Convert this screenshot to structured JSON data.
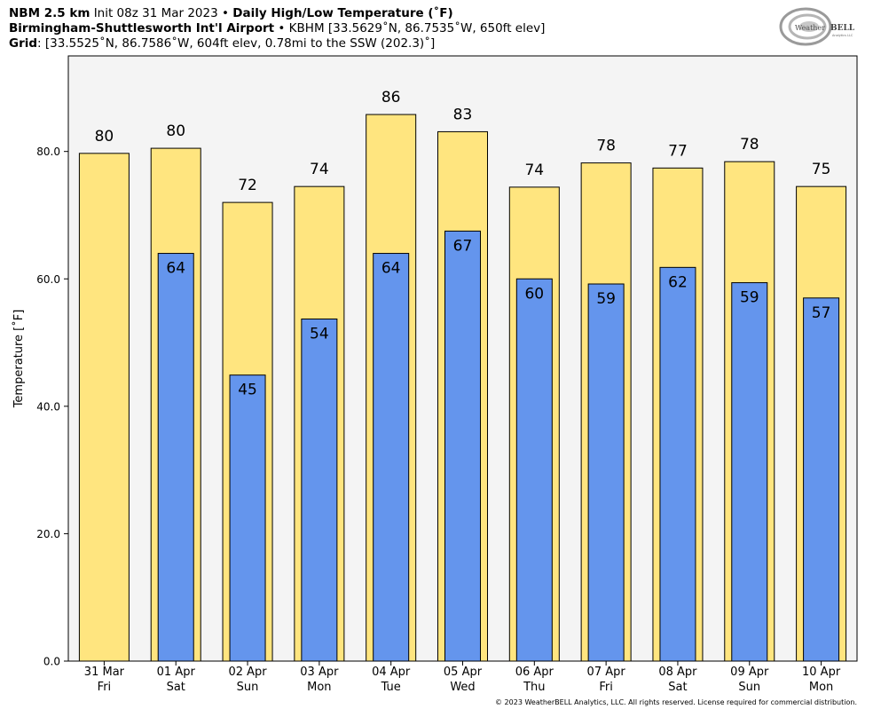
{
  "header": {
    "model": "NBM 2.5 km",
    "init": "Init 08z 31 Mar 2023",
    "bullet": "•",
    "product": "Daily High/Low Temperature (˚F)",
    "station_name": "Birmingham-Shuttlesworth Int'l Airport",
    "station_info": "KBHM [33.5629˚N, 86.7535˚W, 650ft elev]",
    "grid_label": "Grid",
    "grid_info": ": [33.5525˚N, 86.7586˚W, 604ft elev, 0.78mi to the SSW (202.3)˚]"
  },
  "logo": {
    "text_weather": "Weather",
    "text_bell": "BELL",
    "text_sub": "Analytics LLC"
  },
  "copyright": "© 2023 WeatherBELL Analytics, LLC. All rights reserved. License required for commercial distribution.",
  "colors": {
    "high": "#FFE57F",
    "low": "#6495ED",
    "plot_bg": "#F4F4F4",
    "outline": "#000000"
  },
  "chart_data": {
    "type": "bar",
    "ylabel": "Temperature [˚F]",
    "ylim": [
      0,
      95
    ],
    "yticks": [
      0,
      20,
      40,
      60,
      80
    ],
    "ytick_labels": [
      "0.0",
      "20.0",
      "40.0",
      "60.0",
      "80.0"
    ],
    "grid": false,
    "categories": [
      "31 Mar",
      "01 Apr",
      "02 Apr",
      "03 Apr",
      "04 Apr",
      "05 Apr",
      "06 Apr",
      "07 Apr",
      "08 Apr",
      "09 Apr",
      "10 Apr"
    ],
    "weekdays": [
      "Fri",
      "Sat",
      "Sun",
      "Mon",
      "Tue",
      "Wed",
      "Thu",
      "Fri",
      "Sat",
      "Sun",
      "Mon"
    ],
    "series": [
      {
        "values": [
          79.7,
          80.5,
          72.0,
          74.5,
          85.8,
          83.1,
          74.4,
          78.2,
          77.4,
          78.4,
          74.5
        ],
        "labels": [
          "80",
          "80",
          "72",
          "74",
          "86",
          "83",
          "74",
          "78",
          "77",
          "78",
          "75"
        ]
      },
      {
        "values": [
          null,
          64.0,
          44.9,
          53.7,
          64.0,
          67.5,
          60.0,
          59.2,
          61.8,
          59.4,
          57.0
        ],
        "labels": [
          null,
          "64",
          "45",
          "54",
          "64",
          "67",
          "60",
          "59",
          "62",
          "59",
          "57"
        ]
      }
    ]
  }
}
